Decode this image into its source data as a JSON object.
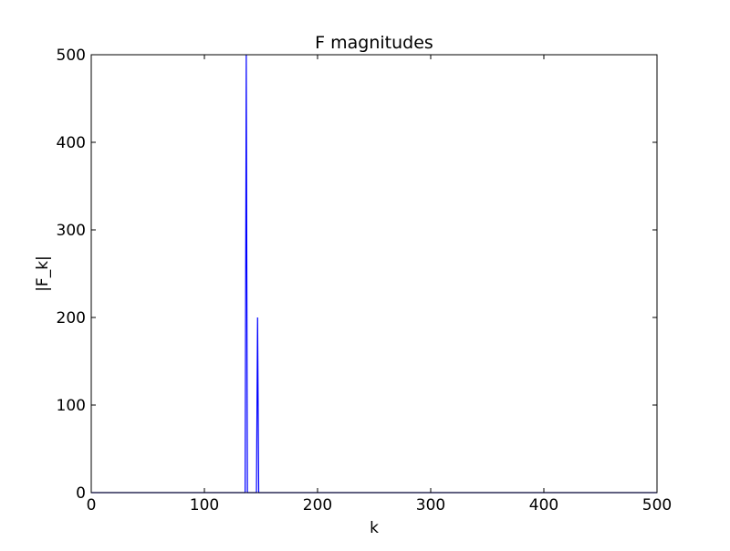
{
  "chart_data": {
    "type": "line",
    "title": "F magnitudes",
    "xlabel": "k",
    "ylabel": "|F_k|",
    "xlim": [
      0,
      500
    ],
    "ylim": [
      0,
      500
    ],
    "xticks": [
      0,
      100,
      200,
      300,
      400,
      500
    ],
    "yticks": [
      0,
      100,
      200,
      300,
      400,
      500
    ],
    "xtick_labels": [
      "0",
      "100",
      "200",
      "300",
      "400",
      "500"
    ],
    "ytick_labels": [
      "0",
      "100",
      "200",
      "300",
      "400",
      "500"
    ],
    "grid": false,
    "series": [
      {
        "color": "#0000ff",
        "x": [
          0,
          136,
          137,
          138,
          146,
          147,
          148,
          500
        ],
        "y": [
          0,
          0,
          500,
          0,
          0,
          200,
          0,
          0
        ]
      }
    ]
  }
}
